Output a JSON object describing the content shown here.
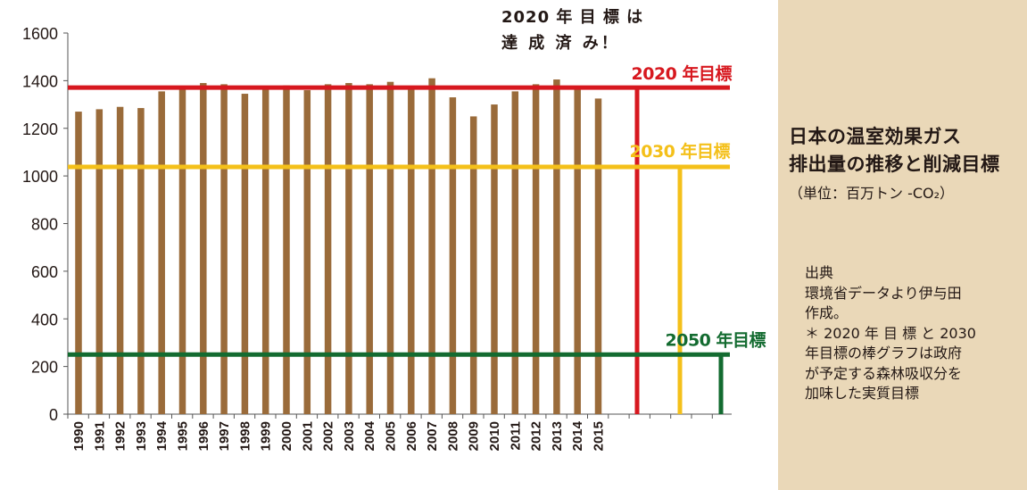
{
  "chart_data": {
    "type": "bar",
    "categories": [
      "1990",
      "1991",
      "1992",
      "1993",
      "1994",
      "1995",
      "1996",
      "1997",
      "1998",
      "1999",
      "2000",
      "2001",
      "2002",
      "2003",
      "2004",
      "2005",
      "2006",
      "2007",
      "2008",
      "2009",
      "2010",
      "2011",
      "2012",
      "2013",
      "2014",
      "2015"
    ],
    "values": [
      1270,
      1280,
      1290,
      1285,
      1355,
      1365,
      1390,
      1385,
      1345,
      1365,
      1380,
      1360,
      1385,
      1390,
      1385,
      1395,
      1365,
      1410,
      1330,
      1250,
      1300,
      1355,
      1385,
      1405,
      1365,
      1325
    ],
    "ylim": [
      0,
      1600
    ],
    "yticks": [
      0,
      200,
      400,
      600,
      800,
      1000,
      1200,
      1400,
      1600
    ],
    "grid": false,
    "bar_color": "#9a6b3a",
    "targets": [
      {
        "label": "2020 年目標",
        "value": 1371,
        "color": "#d7181f"
      },
      {
        "label": "2030 年目標",
        "value": 1038,
        "color": "#f4c01a"
      },
      {
        "label": "2050 年目標",
        "value": 250,
        "color": "#136b30"
      }
    ],
    "annotation": [
      "2020 年 目 標 は",
      "達 成 済 み！"
    ]
  },
  "panel": {
    "background": "#ead8b8",
    "title_line1": "日本の温室効果ガス",
    "title_line2": "排出量の推移と削減目標",
    "unit": "（単位：百万トン -CO₂）",
    "source_lines": [
      "出典",
      "環境省データより伊与田",
      "作成。",
      "＊ 2020 年 目 標 と 2030",
      "年目標の棒グラフは政府",
      "が予定する森林吸収分を",
      "加味した実質目標"
    ]
  }
}
